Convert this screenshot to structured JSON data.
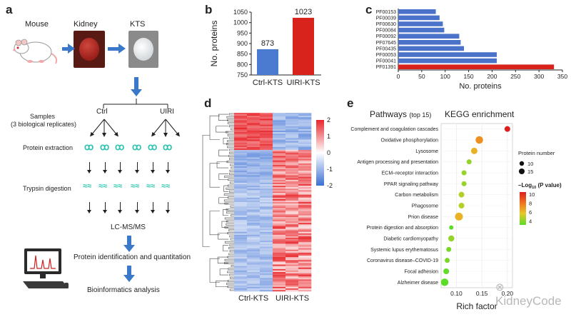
{
  "panel_letters": {
    "a": "a",
    "b": "b",
    "c": "c",
    "d": "d",
    "e": "e"
  },
  "workflow": {
    "mouse_label": "Mouse",
    "kidney_label": "Kidney",
    "kts_label": "KTS",
    "samples_label": "Samples",
    "replicates_label": "(3 biological replicates)",
    "ctrl_label": "Ctrl",
    "uiri_label": "UIRI",
    "protein_extraction": "Protein extraction",
    "trypsin_digestion": "Trypsin digestion",
    "lcms": "LC-MS/MS",
    "identification": "Protein identification and quantitation",
    "bioinformatics": "Bioinformatics analysis"
  },
  "heatmap": {
    "legend_ticks": [
      "2",
      "1",
      "0",
      "-1",
      "-2"
    ],
    "xlabels": [
      "Ctrl-KTS",
      "UIRI-KTS"
    ],
    "colors": {
      "high": "#e8262b",
      "mid": "#ffffff",
      "low": "#3b6fd4"
    }
  },
  "watermark": "KidneyCode",
  "chart_data": [
    {
      "type": "bar",
      "panel": "b",
      "categories": [
        "Ctrl-KTS",
        "UIRI-KTS"
      ],
      "values": [
        873,
        1023
      ],
      "colors": [
        "#4a7bd0",
        "#d8231d"
      ],
      "ylabel": "No. proteins",
      "ylim": [
        750,
        1050
      ],
      "yticks": [
        750,
        800,
        850,
        900,
        950,
        1000,
        1050
      ],
      "data_labels": [
        "873",
        "1023"
      ]
    },
    {
      "type": "bar",
      "panel": "c",
      "orientation": "horizontal",
      "categories": [
        "PF00153",
        "PF00039",
        "PF00630",
        "PF00084",
        "PF00092",
        "PF07645",
        "PF00435",
        "PF00053",
        "PF00041",
        "PF01391"
      ],
      "values": [
        80,
        88,
        95,
        98,
        130,
        133,
        140,
        210,
        210,
        332
      ],
      "colors": [
        "#4a72c8",
        "#4a72c8",
        "#4a72c8",
        "#4a72c8",
        "#4a72c8",
        "#4a72c8",
        "#4a72c8",
        "#4a72c8",
        "#4a72c8",
        "#d8231d"
      ],
      "xlabel": "No. proteins",
      "xlim": [
        0,
        350
      ],
      "xticks": [
        0,
        50,
        100,
        150,
        200,
        250,
        300,
        350
      ]
    },
    {
      "type": "scatter",
      "panel": "e",
      "title": "KEGG enrichment",
      "subtitle_main": "Pathways",
      "subtitle_note": "(top 15)",
      "xlabel": "Rich factor",
      "xticks": [
        "0.10",
        "0.15",
        "0.20"
      ],
      "xlim": [
        0.07,
        0.21
      ],
      "categories": [
        "Complement and coagulation cascades",
        "Oxidative phosphorylation",
        "Lysosome",
        "Antigen processing and presentation",
        "ECM–receptor interaction",
        "PPAR signaling pathway",
        "Carbon metabolism",
        "Phagosome",
        "Prion disease",
        "Protein digestion and absorption",
        "Diabetic cardiomyopathy",
        "Systemic lupus erythematosus",
        "Coronavirus disease–COVID-19",
        "Focal adhesion",
        "Alzheimer disease"
      ],
      "x": [
        0.2,
        0.145,
        0.135,
        0.125,
        0.115,
        0.115,
        0.11,
        0.11,
        0.105,
        0.09,
        0.09,
        0.085,
        0.082,
        0.08,
        0.077
      ],
      "size": [
        10,
        15,
        12,
        8,
        8,
        8,
        10,
        10,
        16,
        6,
        11,
        8,
        8,
        10,
        15
      ],
      "neglog10p": [
        11,
        8,
        7,
        5,
        5,
        5,
        5.5,
        5.5,
        7,
        4,
        5,
        4.5,
        4.5,
        4.2,
        4
      ],
      "legend_size_title": "Protein number",
      "legend_size_values": [
        "10",
        "15"
      ],
      "legend_color_title": "–Log",
      "legend_color_sub": "10",
      "legend_color_suffix": " (P value)",
      "legend_color_ticks": [
        "10",
        "8",
        "6",
        "4"
      ]
    }
  ]
}
